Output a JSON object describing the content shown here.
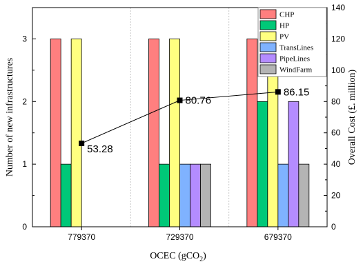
{
  "chart_data": {
    "type": "bar",
    "categories": [
      "779370",
      "729370",
      "679370"
    ],
    "series": [
      {
        "name": "CHP",
        "values": [
          3,
          3,
          3
        ],
        "color": "#ff7f7f"
      },
      {
        "name": "HP",
        "values": [
          1,
          1,
          2
        ],
        "color": "#00c878"
      },
      {
        "name": "PV",
        "values": [
          3,
          3,
          3
        ],
        "color": "#ffff80"
      },
      {
        "name": "TransLines",
        "values": [
          0,
          1,
          1
        ],
        "color": "#7fb2ff"
      },
      {
        "name": "PipeLines",
        "values": [
          0,
          1,
          2
        ],
        "color": "#b48cff"
      },
      {
        "name": "WindFarm",
        "values": [
          0,
          1,
          1
        ],
        "color": "#b4b4b4"
      }
    ],
    "line": {
      "values": [
        53.28,
        80.76,
        86.15
      ],
      "labels": [
        "53.28",
        "80.76",
        "86.15"
      ],
      "color": "#000000"
    },
    "xlabel_main": "OCEC (gCO",
    "xlabel_sub": "2",
    "xlabel_end": ")",
    "ylabel": "Number of new infrastructures",
    "y2label": "Overall Cost (£. million)",
    "ylim": [
      0,
      3.5
    ],
    "yticks": [
      "0",
      "1",
      "2",
      "3"
    ],
    "y2lim": [
      0,
      140
    ],
    "y2ticks": [
      "0",
      "20",
      "40",
      "60",
      "80",
      "100",
      "120",
      "140"
    ],
    "legend_position": "top-right",
    "grid": false
  }
}
